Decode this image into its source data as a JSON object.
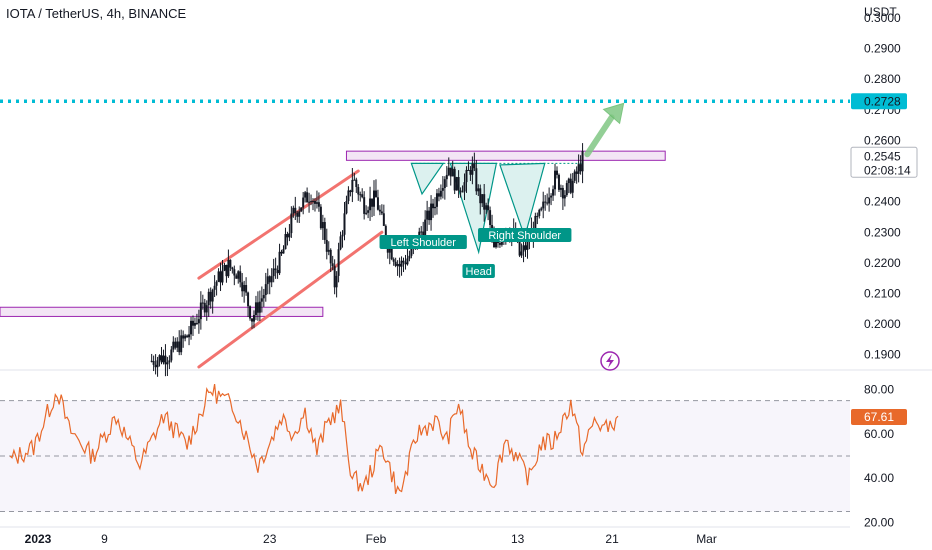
{
  "header": {
    "title": "IOTA / TetherUS, 4h, BINANCE",
    "unit": "USDT"
  },
  "colors": {
    "candle": "#131722",
    "channel": "#f2736f",
    "zone_fill": "#f3e5f5",
    "zone_border": "#9c27b0",
    "target_line": "#00bcd4",
    "pattern_fill": "#b2dfdb",
    "pattern_line": "#009688",
    "arrow": "#81c784",
    "rsi_line": "#e8692a",
    "rsi_badge": "#e8692a",
    "price_badge": "#ffffff",
    "target_badge": "#00bcd4"
  },
  "chart_data": [
    {
      "type": "candlestick",
      "title": "IOTA / TetherUS, 4h, BINANCE",
      "ylabel": "USDT",
      "ylim": [
        0.185,
        0.3
      ],
      "y_ticks": [
        "0.3000",
        "0.2900",
        "0.2800",
        "0.2700",
        "0.2600",
        "0.2400",
        "0.2300",
        "0.2200",
        "0.2100",
        "0.2000",
        "0.1900"
      ],
      "x_ticks": [
        {
          "label": "2023",
          "day": 1
        },
        {
          "label": "9",
          "day": 9
        },
        {
          "label": "23",
          "day": 23
        },
        {
          "label": "Feb",
          "day": 32
        },
        {
          "label": "13",
          "day": 44
        },
        {
          "label": "21",
          "day": 52
        },
        {
          "label": "Mar",
          "day": 60
        }
      ],
      "x_range_days": [
        1,
        73
      ],
      "current_price": "0.2545",
      "countdown": "02:08:14",
      "target_price": "0.2728",
      "candle_keypoints": [
        [
          13.0,
          0.188
        ],
        [
          14.5,
          0.19
        ],
        [
          16.0,
          0.196
        ],
        [
          17.0,
          0.203
        ],
        [
          18.5,
          0.214
        ],
        [
          19.5,
          0.219
        ],
        [
          20.5,
          0.216
        ],
        [
          21.5,
          0.202
        ],
        [
          22.5,
          0.21
        ],
        [
          24.0,
          0.222
        ],
        [
          25.0,
          0.236
        ],
        [
          26.5,
          0.243
        ],
        [
          27.5,
          0.232
        ],
        [
          28.5,
          0.213
        ],
        [
          29.0,
          0.228
        ],
        [
          30.0,
          0.248
        ],
        [
          31.0,
          0.239
        ],
        [
          32.0,
          0.241
        ],
        [
          33.0,
          0.226
        ],
        [
          34.0,
          0.219
        ],
        [
          35.0,
          0.223
        ],
        [
          35.8,
          0.23
        ],
        [
          36.8,
          0.238
        ],
        [
          37.5,
          0.246
        ],
        [
          38.2,
          0.252
        ],
        [
          38.8,
          0.245
        ],
        [
          39.5,
          0.246
        ],
        [
          40.1,
          0.252
        ],
        [
          40.7,
          0.242
        ],
        [
          41.5,
          0.236
        ],
        [
          42.0,
          0.224
        ],
        [
          43.0,
          0.232
        ],
        [
          43.8,
          0.228
        ],
        [
          44.2,
          0.222
        ],
        [
          44.8,
          0.226
        ],
        [
          45.3,
          0.231
        ],
        [
          46.0,
          0.236
        ],
        [
          46.6,
          0.243
        ],
        [
          47.2,
          0.248
        ],
        [
          48.0,
          0.243
        ],
        [
          48.8,
          0.247
        ],
        [
          49.2,
          0.251
        ],
        [
          49.6,
          0.255
        ]
      ],
      "resistance_zone": [
        0.2565,
        0.2535
      ],
      "support_zone": [
        0.2055,
        0.2025
      ],
      "channel_lines": [
        {
          "from": [
            17.0,
            0.215
          ],
          "to": [
            30.5,
            0.25
          ]
        },
        {
          "from": [
            17.0,
            0.186
          ],
          "to": [
            32.5,
            0.23
          ]
        }
      ],
      "pattern": {
        "name": "head_and_shoulders_inverse",
        "neckline": [
          [
            35.0,
            0.2525
          ],
          [
            49.5,
            0.2525
          ]
        ],
        "labels": {
          "left_shoulder": "Left Shoulder",
          "head": "Head",
          "right_shoulder": "Right Shoulder"
        },
        "left_shoulder": [
          [
            35.0,
            0.2525
          ],
          [
            35.9,
            0.2425
          ],
          [
            37.7,
            0.2525
          ]
        ],
        "head": [
          [
            38.3,
            0.2525
          ],
          [
            40.7,
            0.2235
          ],
          [
            42.2,
            0.2525
          ]
        ],
        "right_shoulder": [
          [
            42.5,
            0.252
          ],
          [
            44.6,
            0.2285
          ],
          [
            46.3,
            0.2525
          ]
        ]
      }
    },
    {
      "type": "line",
      "title": "",
      "ylim": [
        18,
        87
      ],
      "y_ticks": [
        "80.00",
        "60.00",
        "40.00",
        "20.00"
      ],
      "bands": [
        75,
        50,
        25
      ],
      "current_value": "67.61",
      "keypoints": [
        [
          1.0,
          48
        ],
        [
          3.0,
          54
        ],
        [
          5.0,
          80
        ],
        [
          6.0,
          62
        ],
        [
          8.0,
          50
        ],
        [
          10.0,
          68
        ],
        [
          12.0,
          46
        ],
        [
          14.0,
          68
        ],
        [
          16.0,
          55
        ],
        [
          18.0,
          80
        ],
        [
          20.0,
          72
        ],
        [
          22.0,
          46
        ],
        [
          23.0,
          56
        ],
        [
          24.0,
          68
        ],
        [
          25.0,
          60
        ],
        [
          26.0,
          70
        ],
        [
          27.0,
          52
        ],
        [
          28.0,
          66
        ],
        [
          29.0,
          72
        ],
        [
          30.0,
          40
        ],
        [
          31.0,
          36
        ],
        [
          32.5,
          55
        ],
        [
          34.0,
          32
        ],
        [
          35.5,
          60
        ],
        [
          37.0,
          66
        ],
        [
          38.0,
          57
        ],
        [
          39.0,
          74
        ],
        [
          40.0,
          52
        ],
        [
          41.0,
          44
        ],
        [
          42.0,
          38
        ],
        [
          43.0,
          58
        ],
        [
          44.0,
          48
        ],
        [
          45.0,
          40
        ],
        [
          46.0,
          56
        ],
        [
          47.0,
          56
        ],
        [
          48.5,
          74
        ],
        [
          49.5,
          52
        ],
        [
          50.5,
          66
        ],
        [
          51.5,
          62
        ],
        [
          52.5,
          68
        ]
      ]
    }
  ]
}
